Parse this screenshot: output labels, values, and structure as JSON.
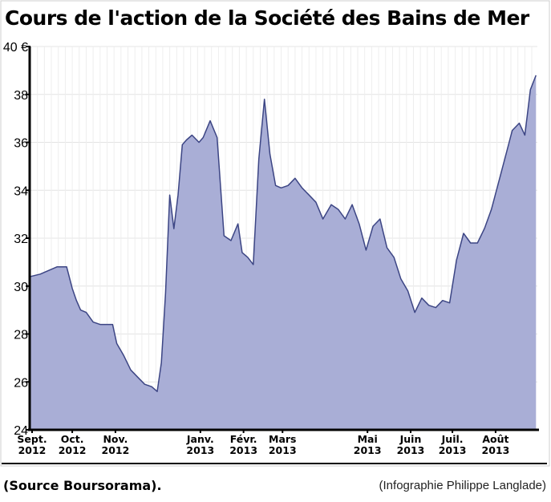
{
  "chart_data": {
    "type": "area",
    "title": "Cours de l'action de la Société des Bains de Mer",
    "ylim": [
      24,
      40
    ],
    "yticks": [
      24,
      26,
      28,
      30,
      32,
      34,
      36,
      38,
      40
    ],
    "ytick_labels": [
      "24",
      "26",
      "28",
      "30",
      "32",
      "34",
      "36",
      "38",
      "40 €"
    ],
    "xlim": [
      "2012-09-01",
      "2013-08-31"
    ],
    "xticks": [
      {
        "line1": "Sept.",
        "line2": "2012",
        "date": "2012-09-01"
      },
      {
        "line1": "Oct.",
        "line2": "2012",
        "date": "2012-10-01"
      },
      {
        "line1": "Nov.",
        "line2": "2012",
        "date": "2012-11-01"
      },
      {
        "line1": "Janv.",
        "line2": "2013",
        "date": "2013-01-01"
      },
      {
        "line1": "Févr.",
        "line2": "2013",
        "date": "2013-02-01"
      },
      {
        "line1": "Mars",
        "line2": "2013",
        "date": "2013-03-01"
      },
      {
        "line1": "Mai",
        "line2": "2013",
        "date": "2013-05-01"
      },
      {
        "line1": "Juin",
        "line2": "2013",
        "date": "2013-06-01"
      },
      {
        "line1": "Juil.",
        "line2": "2013",
        "date": "2013-07-01"
      },
      {
        "line1": "Août",
        "line2": "2013",
        "date": "2013-08-01"
      }
    ],
    "series": [
      {
        "x": [
          "2012-09-01",
          "2012-09-08",
          "2012-09-12",
          "2012-09-20",
          "2012-09-27",
          "2012-10-01",
          "2012-10-04",
          "2012-10-07",
          "2012-10-11",
          "2012-10-16",
          "2012-10-21",
          "2012-10-26",
          "2012-10-30",
          "2012-11-02",
          "2012-11-07",
          "2012-11-12",
          "2012-11-17",
          "2012-11-22",
          "2012-11-27",
          "2012-12-01",
          "2012-12-04",
          "2012-12-07",
          "2012-12-10",
          "2012-12-13",
          "2012-12-16",
          "2012-12-19",
          "2012-12-22",
          "2012-12-26",
          "2012-12-31",
          "2013-01-03",
          "2013-01-08",
          "2013-01-13",
          "2013-01-18",
          "2013-01-23",
          "2013-01-28",
          "2013-01-31",
          "2013-02-04",
          "2013-02-08",
          "2013-02-12",
          "2013-02-16",
          "2013-02-20",
          "2013-02-24",
          "2013-02-28",
          "2013-03-05",
          "2013-03-10",
          "2013-03-15",
          "2013-03-20",
          "2013-03-25",
          "2013-03-30",
          "2013-04-05",
          "2013-04-10",
          "2013-04-15",
          "2013-04-20",
          "2013-04-25",
          "2013-04-30",
          "2013-05-05",
          "2013-05-10",
          "2013-05-15",
          "2013-05-20",
          "2013-05-25",
          "2013-05-30",
          "2013-06-04",
          "2013-06-09",
          "2013-06-14",
          "2013-06-19",
          "2013-06-24",
          "2013-06-29",
          "2013-07-04",
          "2013-07-09",
          "2013-07-14",
          "2013-07-19",
          "2013-07-24",
          "2013-07-29",
          "2013-08-03",
          "2013-08-08",
          "2013-08-13",
          "2013-08-18",
          "2013-08-22",
          "2013-08-26",
          "2013-08-30"
        ],
        "y": [
          30.4,
          30.5,
          30.6,
          30.8,
          30.8,
          29.9,
          29.4,
          29.0,
          28.9,
          28.5,
          28.4,
          28.4,
          28.4,
          27.6,
          27.1,
          26.5,
          26.2,
          25.9,
          25.8,
          25.6,
          26.8,
          29.7,
          33.8,
          32.4,
          33.8,
          35.9,
          36.1,
          36.3,
          36.0,
          36.2,
          36.9,
          36.2,
          32.1,
          31.9,
          32.6,
          31.4,
          31.2,
          30.9,
          35.3,
          37.8,
          35.5,
          34.2,
          34.1,
          34.2,
          34.5,
          34.1,
          33.8,
          33.5,
          32.8,
          33.4,
          33.2,
          32.8,
          33.4,
          32.6,
          31.5,
          32.5,
          32.8,
          31.6,
          31.2,
          30.3,
          29.8,
          28.9,
          29.5,
          29.2,
          29.1,
          29.4,
          29.3,
          31.1,
          32.2,
          31.8,
          31.8,
          32.4,
          33.2,
          34.3,
          35.4,
          36.5,
          36.8,
          36.3,
          38.2,
          38.8
        ]
      }
    ],
    "colors": {
      "fill": "#a9aed6",
      "line": "#3c4584"
    },
    "grid": true
  },
  "footer": {
    "source": "(Source Boursorama).",
    "credit": "(Infographie Philippe Langlade)"
  }
}
